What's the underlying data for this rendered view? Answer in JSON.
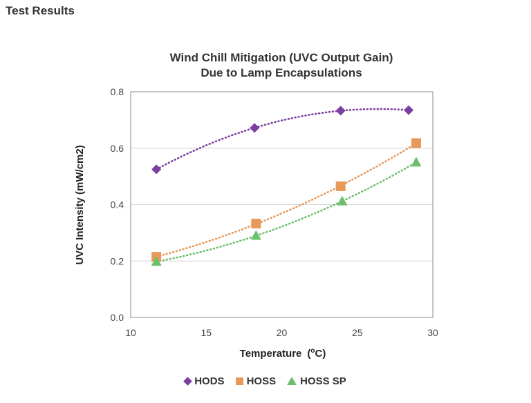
{
  "page": {
    "heading": "Test Results"
  },
  "chart_data": {
    "type": "scatter",
    "title_line1": "Wind Chill Mitigation (UVC Output Gain)",
    "title_line2": "Due to Lamp Encapsulations",
    "xlabel_main": "Temperature",
    "xlabel_super": "o",
    "xlabel_unit": "C",
    "ylabel": "UVC Intensity (mW/cm2)",
    "xlim": [
      10,
      30
    ],
    "ylim": [
      0,
      0.8
    ],
    "xticks": [
      10,
      15,
      20,
      25,
      30
    ],
    "xtick_labels": [
      "10",
      "15",
      "20",
      "25",
      "30"
    ],
    "yticks": [
      0,
      0.2,
      0.4,
      0.6,
      0.8
    ],
    "ytick_labels": [
      "0.0",
      "0.2",
      "0.4",
      "0.6",
      "0.8"
    ],
    "gridlines": "horizontal",
    "legend_position": "bottom",
    "trendline": "polynomial dotted",
    "series": [
      {
        "name": "HODS",
        "marker": "diamond",
        "color": "#7b3fa0",
        "x": [
          11.7,
          18.2,
          23.9,
          28.4
        ],
        "y": [
          0.525,
          0.672,
          0.733,
          0.735
        ]
      },
      {
        "name": "HOSS",
        "marker": "square",
        "color": "#e8995a",
        "x": [
          11.7,
          18.3,
          23.9,
          28.9
        ],
        "y": [
          0.215,
          0.333,
          0.465,
          0.618
        ]
      },
      {
        "name": "HOSS SP",
        "marker": "triangle",
        "color": "#6cbf6c",
        "x": [
          11.7,
          18.3,
          24.0,
          28.9
        ],
        "y": [
          0.198,
          0.29,
          0.412,
          0.55
        ]
      }
    ]
  }
}
